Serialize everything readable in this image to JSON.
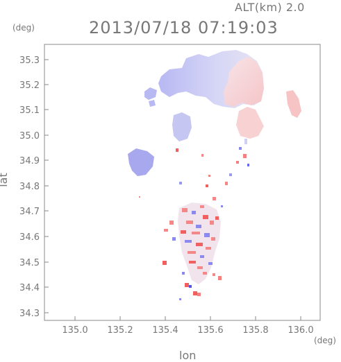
{
  "header": {
    "altitude_label": "ALT(km) 2.0",
    "timestamp": "2013/07/18 07:19:03"
  },
  "axes": {
    "y_unit": "(deg)",
    "x_unit": "(deg)",
    "y_label": "lat",
    "x_label": "lon",
    "x_ticks": [
      "135.0",
      "135.2",
      "135.4",
      "135.6",
      "135.8",
      "136.0"
    ],
    "y_ticks": [
      "35.3",
      "35.2",
      "35.1",
      "35.0",
      "34.9",
      "34.8",
      "34.7",
      "34.6",
      "34.5",
      "34.4",
      "34.3"
    ]
  },
  "colors": {
    "frame": "#888888",
    "positive": "#f06060",
    "negative": "#6b6bef",
    "positive_light": "#f8c8c8",
    "negative_light": "#c8c8f4"
  }
}
